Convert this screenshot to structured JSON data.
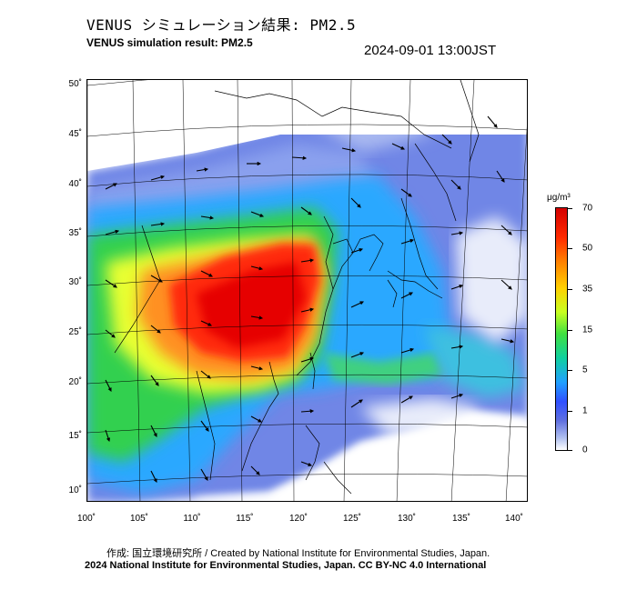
{
  "header": {
    "title_jp": "VENUS シミュレーション結果: PM2.5",
    "title_en": "VENUS simulation result: PM2.5",
    "timestamp": "2024-09-01 13:00JST"
  },
  "map": {
    "lat_labels": [
      "50˚",
      "45˚",
      "40˚",
      "35˚",
      "30˚",
      "25˚",
      "20˚",
      "15˚",
      "10˚"
    ],
    "lon_labels": [
      "100˚",
      "105˚",
      "110˚",
      "115˚",
      "120˚",
      "125˚",
      "130˚",
      "135˚",
      "140˚"
    ],
    "layers": [
      "pm25-concentration",
      "wind-vectors",
      "coastlines",
      "graticule"
    ],
    "colors": {
      "high": "#d40000",
      "mid_high": "#ff8000",
      "mid": "#c8ff20",
      "mid_low": "#10d0a0",
      "low": "#3050ff",
      "lowest": "#ffffff"
    }
  },
  "colorbar": {
    "unit": "μg/m³",
    "ticks": [
      "70",
      "50",
      "35",
      "15",
      "5",
      "1",
      "0"
    ]
  },
  "footer": {
    "credit_line1": "作成: 国立環境研究所 / Created by National Institute for Environmental Studies, Japan.",
    "credit_line2": "2024 National Institute for Environmental Studies, Japan. CC BY-NC 4.0 International"
  }
}
